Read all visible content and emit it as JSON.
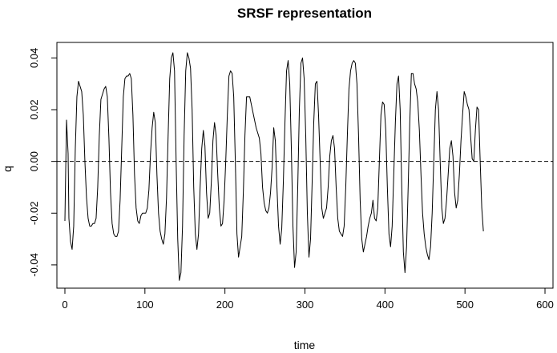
{
  "chart_data": {
    "type": "line",
    "title": "SRSF representation",
    "xlabel": "time",
    "ylabel": "q",
    "xlim": [
      -10,
      610
    ],
    "ylim": [
      -0.049,
      0.046
    ],
    "xticks": [
      0,
      100,
      200,
      300,
      400,
      500,
      600
    ],
    "yticks": [
      -0.04,
      -0.02,
      0.0,
      0.02,
      0.04
    ],
    "xtick_labels": [
      "0",
      "100",
      "200",
      "300",
      "400",
      "500",
      "600"
    ],
    "ytick_labels": [
      "-0.04",
      "-0.02",
      "0.00",
      "0.02",
      "0.04"
    ],
    "grid": false,
    "legend": "none",
    "reference_line": {
      "y": 0,
      "style": "dashed"
    },
    "series": [
      {
        "color": "#000000",
        "points": [
          [
            0,
            -0.023
          ],
          [
            2,
            0.016
          ],
          [
            4,
            0.003
          ],
          [
            5,
            -0.022
          ],
          [
            7,
            -0.031
          ],
          [
            9,
            -0.034
          ],
          [
            11,
            -0.025
          ],
          [
            13,
            0.005
          ],
          [
            15,
            0.025
          ],
          [
            17,
            0.031
          ],
          [
            19,
            0.029
          ],
          [
            21,
            0.027
          ],
          [
            23,
            0.018
          ],
          [
            25,
            0.0
          ],
          [
            27,
            -0.014
          ],
          [
            29,
            -0.022
          ],
          [
            31,
            -0.025
          ],
          [
            33,
            -0.025
          ],
          [
            35,
            -0.024
          ],
          [
            37,
            -0.024
          ],
          [
            39,
            -0.022
          ],
          [
            41,
            -0.01
          ],
          [
            43,
            0.01
          ],
          [
            45,
            0.024
          ],
          [
            47,
            0.026
          ],
          [
            49,
            0.028
          ],
          [
            51,
            0.029
          ],
          [
            53,
            0.025
          ],
          [
            55,
            0.009
          ],
          [
            57,
            -0.012
          ],
          [
            59,
            -0.024
          ],
          [
            61,
            -0.028
          ],
          [
            63,
            -0.029
          ],
          [
            65,
            -0.029
          ],
          [
            67,
            -0.027
          ],
          [
            69,
            -0.015
          ],
          [
            71,
            0.005
          ],
          [
            73,
            0.025
          ],
          [
            75,
            0.032
          ],
          [
            77,
            0.033
          ],
          [
            79,
            0.033
          ],
          [
            81,
            0.034
          ],
          [
            83,
            0.032
          ],
          [
            85,
            0.018
          ],
          [
            87,
            -0.005
          ],
          [
            89,
            -0.018
          ],
          [
            91,
            -0.023
          ],
          [
            93,
            -0.024
          ],
          [
            95,
            -0.021
          ],
          [
            97,
            -0.02
          ],
          [
            99,
            -0.02
          ],
          [
            101,
            -0.02
          ],
          [
            103,
            -0.018
          ],
          [
            105,
            -0.011
          ],
          [
            107,
            0.003
          ],
          [
            109,
            0.013
          ],
          [
            111,
            0.019
          ],
          [
            113,
            0.015
          ],
          [
            115,
            -0.005
          ],
          [
            117,
            -0.02
          ],
          [
            119,
            -0.027
          ],
          [
            121,
            -0.03
          ],
          [
            123,
            -0.032
          ],
          [
            125,
            -0.028
          ],
          [
            127,
            -0.014
          ],
          [
            129,
            0.01
          ],
          [
            131,
            0.032
          ],
          [
            133,
            0.04
          ],
          [
            135,
            0.042
          ],
          [
            137,
            0.035
          ],
          [
            139,
            0.0
          ],
          [
            141,
            -0.03
          ],
          [
            143,
            -0.046
          ],
          [
            145,
            -0.043
          ],
          [
            147,
            -0.025
          ],
          [
            149,
            0.01
          ],
          [
            151,
            0.035
          ],
          [
            153,
            0.042
          ],
          [
            155,
            0.04
          ],
          [
            157,
            0.036
          ],
          [
            159,
            0.02
          ],
          [
            161,
            -0.01
          ],
          [
            163,
            -0.028
          ],
          [
            165,
            -0.034
          ],
          [
            167,
            -0.028
          ],
          [
            169,
            -0.01
          ],
          [
            171,
            0.005
          ],
          [
            173,
            0.012
          ],
          [
            175,
            0.006
          ],
          [
            177,
            -0.012
          ],
          [
            179,
            -0.022
          ],
          [
            181,
            -0.02
          ],
          [
            183,
            -0.008
          ],
          [
            185,
            0.008
          ],
          [
            187,
            0.015
          ],
          [
            189,
            0.01
          ],
          [
            191,
            -0.005
          ],
          [
            193,
            -0.018
          ],
          [
            195,
            -0.025
          ],
          [
            197,
            -0.024
          ],
          [
            199,
            -0.015
          ],
          [
            201,
            0.0
          ],
          [
            203,
            0.018
          ],
          [
            205,
            0.033
          ],
          [
            207,
            0.035
          ],
          [
            209,
            0.034
          ],
          [
            211,
            0.025
          ],
          [
            213,
            0.0
          ],
          [
            215,
            -0.028
          ],
          [
            217,
            -0.037
          ],
          [
            219,
            -0.033
          ],
          [
            221,
            -0.029
          ],
          [
            223,
            -0.012
          ],
          [
            225,
            0.01
          ],
          [
            227,
            0.025
          ],
          [
            229,
            0.025
          ],
          [
            231,
            0.025
          ],
          [
            233,
            0.022
          ],
          [
            235,
            0.019
          ],
          [
            237,
            0.016
          ],
          [
            239,
            0.013
          ],
          [
            241,
            0.011
          ],
          [
            243,
            0.009
          ],
          [
            245,
            0.003
          ],
          [
            247,
            -0.01
          ],
          [
            249,
            -0.016
          ],
          [
            251,
            -0.019
          ],
          [
            253,
            -0.02
          ],
          [
            255,
            -0.018
          ],
          [
            257,
            -0.012
          ],
          [
            259,
            -0.002
          ],
          [
            261,
            0.013
          ],
          [
            263,
            0.008
          ],
          [
            265,
            -0.01
          ],
          [
            267,
            -0.025
          ],
          [
            269,
            -0.032
          ],
          [
            271,
            -0.026
          ],
          [
            273,
            -0.008
          ],
          [
            275,
            0.015
          ],
          [
            277,
            0.035
          ],
          [
            279,
            0.039
          ],
          [
            281,
            0.03
          ],
          [
            283,
            0.005
          ],
          [
            285,
            -0.025
          ],
          [
            287,
            -0.041
          ],
          [
            289,
            -0.035
          ],
          [
            291,
            -0.01
          ],
          [
            293,
            0.02
          ],
          [
            295,
            0.038
          ],
          [
            297,
            0.04
          ],
          [
            299,
            0.032
          ],
          [
            301,
            0.01
          ],
          [
            303,
            -0.02
          ],
          [
            305,
            -0.037
          ],
          [
            307,
            -0.03
          ],
          [
            309,
            -0.008
          ],
          [
            311,
            0.015
          ],
          [
            313,
            0.03
          ],
          [
            315,
            0.031
          ],
          [
            317,
            0.018
          ],
          [
            319,
            0.0
          ],
          [
            321,
            -0.018
          ],
          [
            323,
            -0.022
          ],
          [
            325,
            -0.02
          ],
          [
            327,
            -0.018
          ],
          [
            329,
            -0.01
          ],
          [
            331,
            0.002
          ],
          [
            333,
            0.008
          ],
          [
            335,
            0.01
          ],
          [
            337,
            0.005
          ],
          [
            339,
            -0.01
          ],
          [
            341,
            -0.022
          ],
          [
            343,
            -0.027
          ],
          [
            345,
            -0.028
          ],
          [
            347,
            -0.029
          ],
          [
            349,
            -0.025
          ],
          [
            351,
            -0.01
          ],
          [
            353,
            0.01
          ],
          [
            355,
            0.028
          ],
          [
            357,
            0.035
          ],
          [
            359,
            0.038
          ],
          [
            361,
            0.039
          ],
          [
            363,
            0.038
          ],
          [
            365,
            0.03
          ],
          [
            367,
            0.01
          ],
          [
            369,
            -0.015
          ],
          [
            371,
            -0.03
          ],
          [
            373,
            -0.035
          ],
          [
            375,
            -0.032
          ],
          [
            377,
            -0.029
          ],
          [
            379,
            -0.025
          ],
          [
            381,
            -0.022
          ],
          [
            383,
            -0.02
          ],
          [
            385,
            -0.015
          ],
          [
            387,
            -0.022
          ],
          [
            389,
            -0.023
          ],
          [
            391,
            -0.018
          ],
          [
            393,
            0.0
          ],
          [
            395,
            0.018
          ],
          [
            397,
            0.023
          ],
          [
            399,
            0.022
          ],
          [
            401,
            0.012
          ],
          [
            403,
            -0.01
          ],
          [
            405,
            -0.028
          ],
          [
            407,
            -0.033
          ],
          [
            409,
            -0.025
          ],
          [
            411,
            -0.005
          ],
          [
            413,
            0.015
          ],
          [
            415,
            0.03
          ],
          [
            417,
            0.033
          ],
          [
            419,
            0.02
          ],
          [
            421,
            -0.01
          ],
          [
            423,
            -0.035
          ],
          [
            425,
            -0.043
          ],
          [
            427,
            -0.033
          ],
          [
            429,
            -0.01
          ],
          [
            431,
            0.015
          ],
          [
            433,
            0.034
          ],
          [
            435,
            0.034
          ],
          [
            437,
            0.03
          ],
          [
            439,
            0.028
          ],
          [
            441,
            0.023
          ],
          [
            443,
            0.012
          ],
          [
            445,
            -0.005
          ],
          [
            447,
            -0.02
          ],
          [
            449,
            -0.028
          ],
          [
            451,
            -0.033
          ],
          [
            453,
            -0.036
          ],
          [
            455,
            -0.038
          ],
          [
            457,
            -0.033
          ],
          [
            459,
            -0.02
          ],
          [
            461,
            0.0
          ],
          [
            463,
            0.02
          ],
          [
            465,
            0.027
          ],
          [
            467,
            0.02
          ],
          [
            469,
            0.0
          ],
          [
            471,
            -0.018
          ],
          [
            473,
            -0.024
          ],
          [
            475,
            -0.022
          ],
          [
            477,
            -0.015
          ],
          [
            479,
            -0.005
          ],
          [
            481,
            0.005
          ],
          [
            483,
            0.008
          ],
          [
            485,
            0.002
          ],
          [
            487,
            -0.012
          ],
          [
            489,
            -0.018
          ],
          [
            491,
            -0.015
          ],
          [
            493,
            -0.005
          ],
          [
            495,
            0.008
          ],
          [
            497,
            0.018
          ],
          [
            499,
            0.027
          ],
          [
            501,
            0.025
          ],
          [
            503,
            0.022
          ],
          [
            505,
            0.02
          ],
          [
            507,
            0.01
          ],
          [
            509,
            0.001
          ],
          [
            511,
            0.0
          ],
          [
            513,
            0.012
          ],
          [
            515,
            0.021
          ],
          [
            517,
            0.02
          ],
          [
            519,
            0.0
          ],
          [
            521,
            -0.018
          ],
          [
            523,
            -0.027
          ]
        ]
      }
    ]
  }
}
